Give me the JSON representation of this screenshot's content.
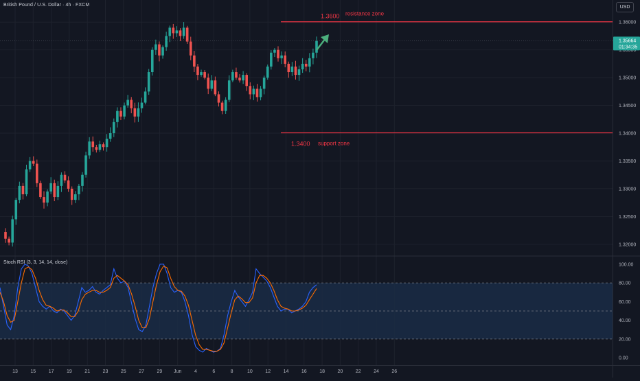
{
  "header": {
    "symbol_title": "British Pound / U.S. Dollar · 4h · FXCM",
    "currency": "USD"
  },
  "price_badge": {
    "price": "1.35664",
    "countdown": "01:34:35",
    "color": "#26a69a"
  },
  "annotations": {
    "resistance_price": "1.3600",
    "resistance_label": "resistance zone",
    "support_price": "1.3400",
    "support_label": "support zone",
    "line_color": "#f23645",
    "arrow_color": "#4caf7d"
  },
  "indicator": {
    "title": "Stoch RSI (3, 3, 14, 14, close)"
  },
  "colors": {
    "up": "#26a69a",
    "down": "#ef5350",
    "k_line": "#2962ff",
    "d_line": "#ff6d00",
    "band_fill": "#1a2c45"
  },
  "chart_data": [
    {
      "type": "candlestick",
      "title": "British Pound / U.S. Dollar · 4h · FXCM",
      "ylim": [
        1.318,
        1.3625
      ],
      "y_ticks": [
        "1.32000",
        "1.32500",
        "1.33000",
        "1.33500",
        "1.34000",
        "1.34500",
        "1.35000",
        "1.35500",
        "1.36000"
      ],
      "x_ticks": [
        "13",
        "15",
        "17",
        "19",
        "21",
        "23",
        "25",
        "27",
        "29",
        "Jun",
        "4",
        "6",
        "8",
        "10",
        "12",
        "14",
        "16",
        "18",
        "20",
        "22",
        "24",
        "26"
      ],
      "horizontal_levels": [
        {
          "price": 1.36,
          "label": "resistance zone"
        },
        {
          "price": 1.34,
          "label": "support zone"
        }
      ],
      "close_series": [
        1.321,
        1.3203,
        1.3245,
        1.328,
        1.3305,
        1.329,
        1.3335,
        1.335,
        1.3345,
        1.331,
        1.3285,
        1.3275,
        1.3295,
        1.331,
        1.3285,
        1.3305,
        1.3325,
        1.3315,
        1.33,
        1.328,
        1.329,
        1.3305,
        1.3325,
        1.336,
        1.3385,
        1.3375,
        1.337,
        1.338,
        1.3375,
        1.339,
        1.34,
        1.342,
        1.344,
        1.343,
        1.345,
        1.346,
        1.3445,
        1.343,
        1.3445,
        1.3455,
        1.3475,
        1.351,
        1.355,
        1.356,
        1.354,
        1.3555,
        1.3575,
        1.359,
        1.358,
        1.3585,
        1.3575,
        1.359,
        1.3565,
        1.354,
        1.352,
        1.3505,
        1.351,
        1.35,
        1.348,
        1.3495,
        1.347,
        1.3455,
        1.344,
        1.346,
        1.3495,
        1.351,
        1.35,
        1.3495,
        1.3505,
        1.3485,
        1.347,
        1.348,
        1.3465,
        1.348,
        1.35,
        1.352,
        1.3545,
        1.355,
        1.3535,
        1.354,
        1.3525,
        1.351,
        1.352,
        1.3505,
        1.3515,
        1.3525,
        1.352,
        1.3535,
        1.3545,
        1.3566
      ]
    },
    {
      "type": "line",
      "title": "Stoch RSI (3, 3, 14, 14, close)",
      "ylim": [
        -5,
        105
      ],
      "y_ticks": [
        "100.00",
        "80.00",
        "60.00",
        "40.00",
        "20.00",
        "0.00"
      ],
      "bands": [
        80,
        50,
        20
      ],
      "series": [
        {
          "values": [
            75,
            55,
            35,
            30,
            45,
            75,
            95,
            100,
            98,
            90,
            75,
            60,
            55,
            52,
            55,
            50,
            48,
            52,
            50,
            45,
            40,
            45,
            60,
            75,
            70,
            72,
            76,
            70,
            68,
            72,
            75,
            78,
            95,
            85,
            80,
            82,
            75,
            58,
            42,
            30,
            28,
            35,
            55,
            75,
            90,
            100,
            100,
            90,
            75,
            70,
            72,
            70,
            60,
            45,
            25,
            12,
            8,
            6,
            10,
            8,
            6,
            7,
            10,
            25,
            45,
            60,
            72,
            65,
            60,
            55,
            62,
            70,
            95,
            90,
            86,
            82,
            75,
            65,
            55,
            50,
            52,
            52,
            48,
            50,
            52,
            55,
            60,
            70,
            75,
            78
          ]
        },
        {
          "values": [
            70,
            60,
            45,
            38,
            40,
            60,
            80,
            95,
            97,
            94,
            85,
            72,
            62,
            56,
            55,
            53,
            50,
            51,
            51,
            48,
            44,
            44,
            50,
            62,
            68,
            70,
            72,
            72,
            70,
            70,
            72,
            75,
            85,
            88,
            85,
            82,
            78,
            68,
            55,
            40,
            32,
            32,
            42,
            60,
            78,
            92,
            98,
            96,
            85,
            76,
            72,
            71,
            66,
            56,
            40,
            24,
            14,
            9,
            9,
            8,
            7,
            7,
            9,
            16,
            32,
            48,
            62,
            66,
            63,
            59,
            59,
            64,
            80,
            88,
            88,
            85,
            80,
            72,
            62,
            55,
            53,
            52,
            50,
            50,
            51,
            53,
            56,
            62,
            68,
            74
          ]
        }
      ]
    }
  ]
}
